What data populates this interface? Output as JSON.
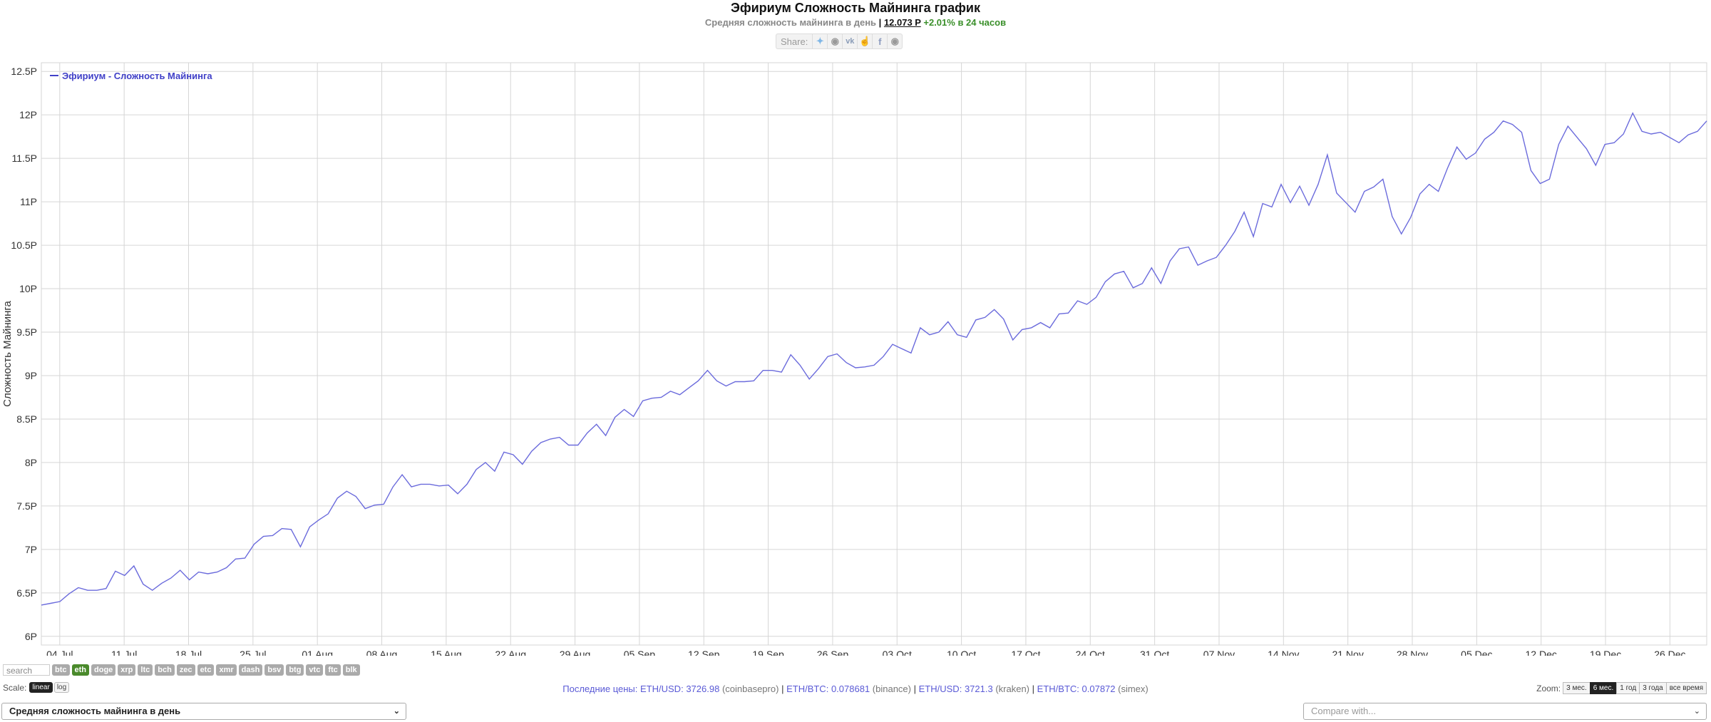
{
  "header": {
    "title": "Эфириум Сложность Майнинга график",
    "subtitle_prefix": "Средняя сложность майнинга в день",
    "subtitle_sep": "|",
    "current_value": "12.073 P",
    "change": "+2.01% в 24 часов",
    "share_label": "Share:",
    "share_icons": [
      "twitter-icon",
      "reddit-icon",
      "vk-icon",
      "like-icon",
      "facebook-icon",
      "weibo-icon"
    ]
  },
  "controls": {
    "search_placeholder": "search",
    "coins": [
      "btc",
      "eth",
      "doge",
      "xrp",
      "ltc",
      "bch",
      "zec",
      "etc",
      "xmr",
      "dash",
      "bsv",
      "btg",
      "vtc",
      "ftc",
      "blk"
    ],
    "active_coin": "eth",
    "scale_label": "Scale:",
    "scale_linear": "linear",
    "scale_log": "log",
    "zoom_label": "Zoom:",
    "zoom_options": [
      "3 мес.",
      "6 мес.",
      "1 год",
      "3 года",
      "все время"
    ],
    "zoom_active": "6 мес.",
    "metric_select": "Средняя сложность майнинга в день",
    "compare_placeholder": "Compare with..."
  },
  "prices": {
    "label": "Последние цены:",
    "items": [
      {
        "pair": "ETH/USD:",
        "value": "3726.98",
        "source": "(coinbasepro)"
      },
      {
        "pair": "ETH/BTC:",
        "value": "0.078681",
        "source": "(binance)"
      },
      {
        "pair": "ETH/USD:",
        "value": "3721.3",
        "source": "(kraken)"
      },
      {
        "pair": "ETH/BTC:",
        "value": "0.07872",
        "source": "(simex)"
      }
    ]
  },
  "colors": {
    "line": "#6b6bdc",
    "grid": "#d6d6d6",
    "legend": "#4040c8",
    "active_tag": "#4a8a2c"
  },
  "chart_data": {
    "type": "line",
    "title": "",
    "xlabel": "",
    "ylabel": "Сложность Майнинга",
    "ylim": [
      5.9,
      12.6
    ],
    "legend_position": "top-left",
    "grid": true,
    "yticks": [
      6,
      6.5,
      7,
      7.5,
      8,
      8.5,
      9,
      9.5,
      10,
      10.5,
      11,
      11.5,
      12,
      12.5
    ],
    "ytick_labels": [
      "6P",
      "6.5P",
      "7P",
      "7.5P",
      "8P",
      "8.5P",
      "9P",
      "9.5P",
      "10P",
      "10.5P",
      "11P",
      "11.5P",
      "12P",
      "12.5P"
    ],
    "xticks": [
      "04 Jul",
      "11 Jul",
      "18 Jul",
      "25 Jul",
      "01 Aug",
      "08 Aug",
      "15 Aug",
      "22 Aug",
      "29 Aug",
      "05 Sep",
      "12 Sep",
      "19 Sep",
      "26 Sep",
      "03 Oct",
      "10 Oct",
      "17 Oct",
      "24 Oct",
      "31 Oct",
      "07 Nov",
      "14 Nov",
      "21 Nov",
      "28 Nov",
      "05 Dec",
      "12 Dec",
      "19 Dec",
      "26 Dec"
    ],
    "x_start": "2021-07-02",
    "x_end": "2021-12-30",
    "series": [
      {
        "name": "Эфириум - Сложность Майнинга",
        "unit": "P",
        "values": [
          6.36,
          6.38,
          6.4,
          6.49,
          6.56,
          6.53,
          6.53,
          6.55,
          6.75,
          6.7,
          6.81,
          6.6,
          6.53,
          6.61,
          6.67,
          6.76,
          6.65,
          6.74,
          6.72,
          6.74,
          6.79,
          6.89,
          6.9,
          7.06,
          7.15,
          7.16,
          7.24,
          7.23,
          7.03,
          7.26,
          7.34,
          7.41,
          7.59,
          7.67,
          7.61,
          7.47,
          7.51,
          7.52,
          7.72,
          7.86,
          7.72,
          7.75,
          7.75,
          7.73,
          7.74,
          7.64,
          7.75,
          7.92,
          8,
          7.9,
          8.12,
          8.09,
          7.98,
          8.13,
          8.23,
          8.27,
          8.29,
          8.2,
          8.2,
          8.34,
          8.44,
          8.31,
          8.52,
          8.61,
          8.53,
          8.71,
          8.74,
          8.75,
          8.82,
          8.78,
          8.86,
          8.94,
          9.06,
          8.94,
          8.88,
          8.93,
          8.93,
          8.94,
          9.06,
          9.06,
          9.04,
          9.24,
          9.12,
          8.96,
          9.08,
          9.22,
          9.25,
          9.15,
          9.09,
          9.1,
          9.12,
          9.22,
          9.36,
          9.31,
          9.26,
          9.55,
          9.47,
          9.5,
          9.62,
          9.47,
          9.44,
          9.64,
          9.67,
          9.76,
          9.65,
          9.41,
          9.53,
          9.55,
          9.61,
          9.55,
          9.71,
          9.72,
          9.86,
          9.82,
          9.9,
          10.08,
          10.17,
          10.2,
          10.01,
          10.06,
          10.24,
          10.06,
          10.32,
          10.46,
          10.48,
          10.27,
          10.32,
          10.36,
          10.5,
          10.66,
          10.88,
          10.6,
          10.98,
          10.94,
          11.2,
          10.99,
          11.18,
          10.96,
          11.2,
          11.54,
          11.1,
          10.99,
          10.88,
          11.12,
          11.17,
          11.26,
          10.83,
          10.63,
          10.82,
          11.09,
          11.2,
          11.12,
          11.39,
          11.63,
          11.49,
          11.56,
          11.72,
          11.8,
          11.93,
          11.89,
          11.8,
          11.36,
          11.21,
          11.26,
          11.66,
          11.87,
          11.74,
          11.61,
          11.42,
          11.66,
          11.68,
          11.78,
          12.02,
          11.81,
          11.78,
          11.8,
          11.74,
          11.68,
          11.77,
          11.81,
          11.93
        ]
      }
    ]
  }
}
